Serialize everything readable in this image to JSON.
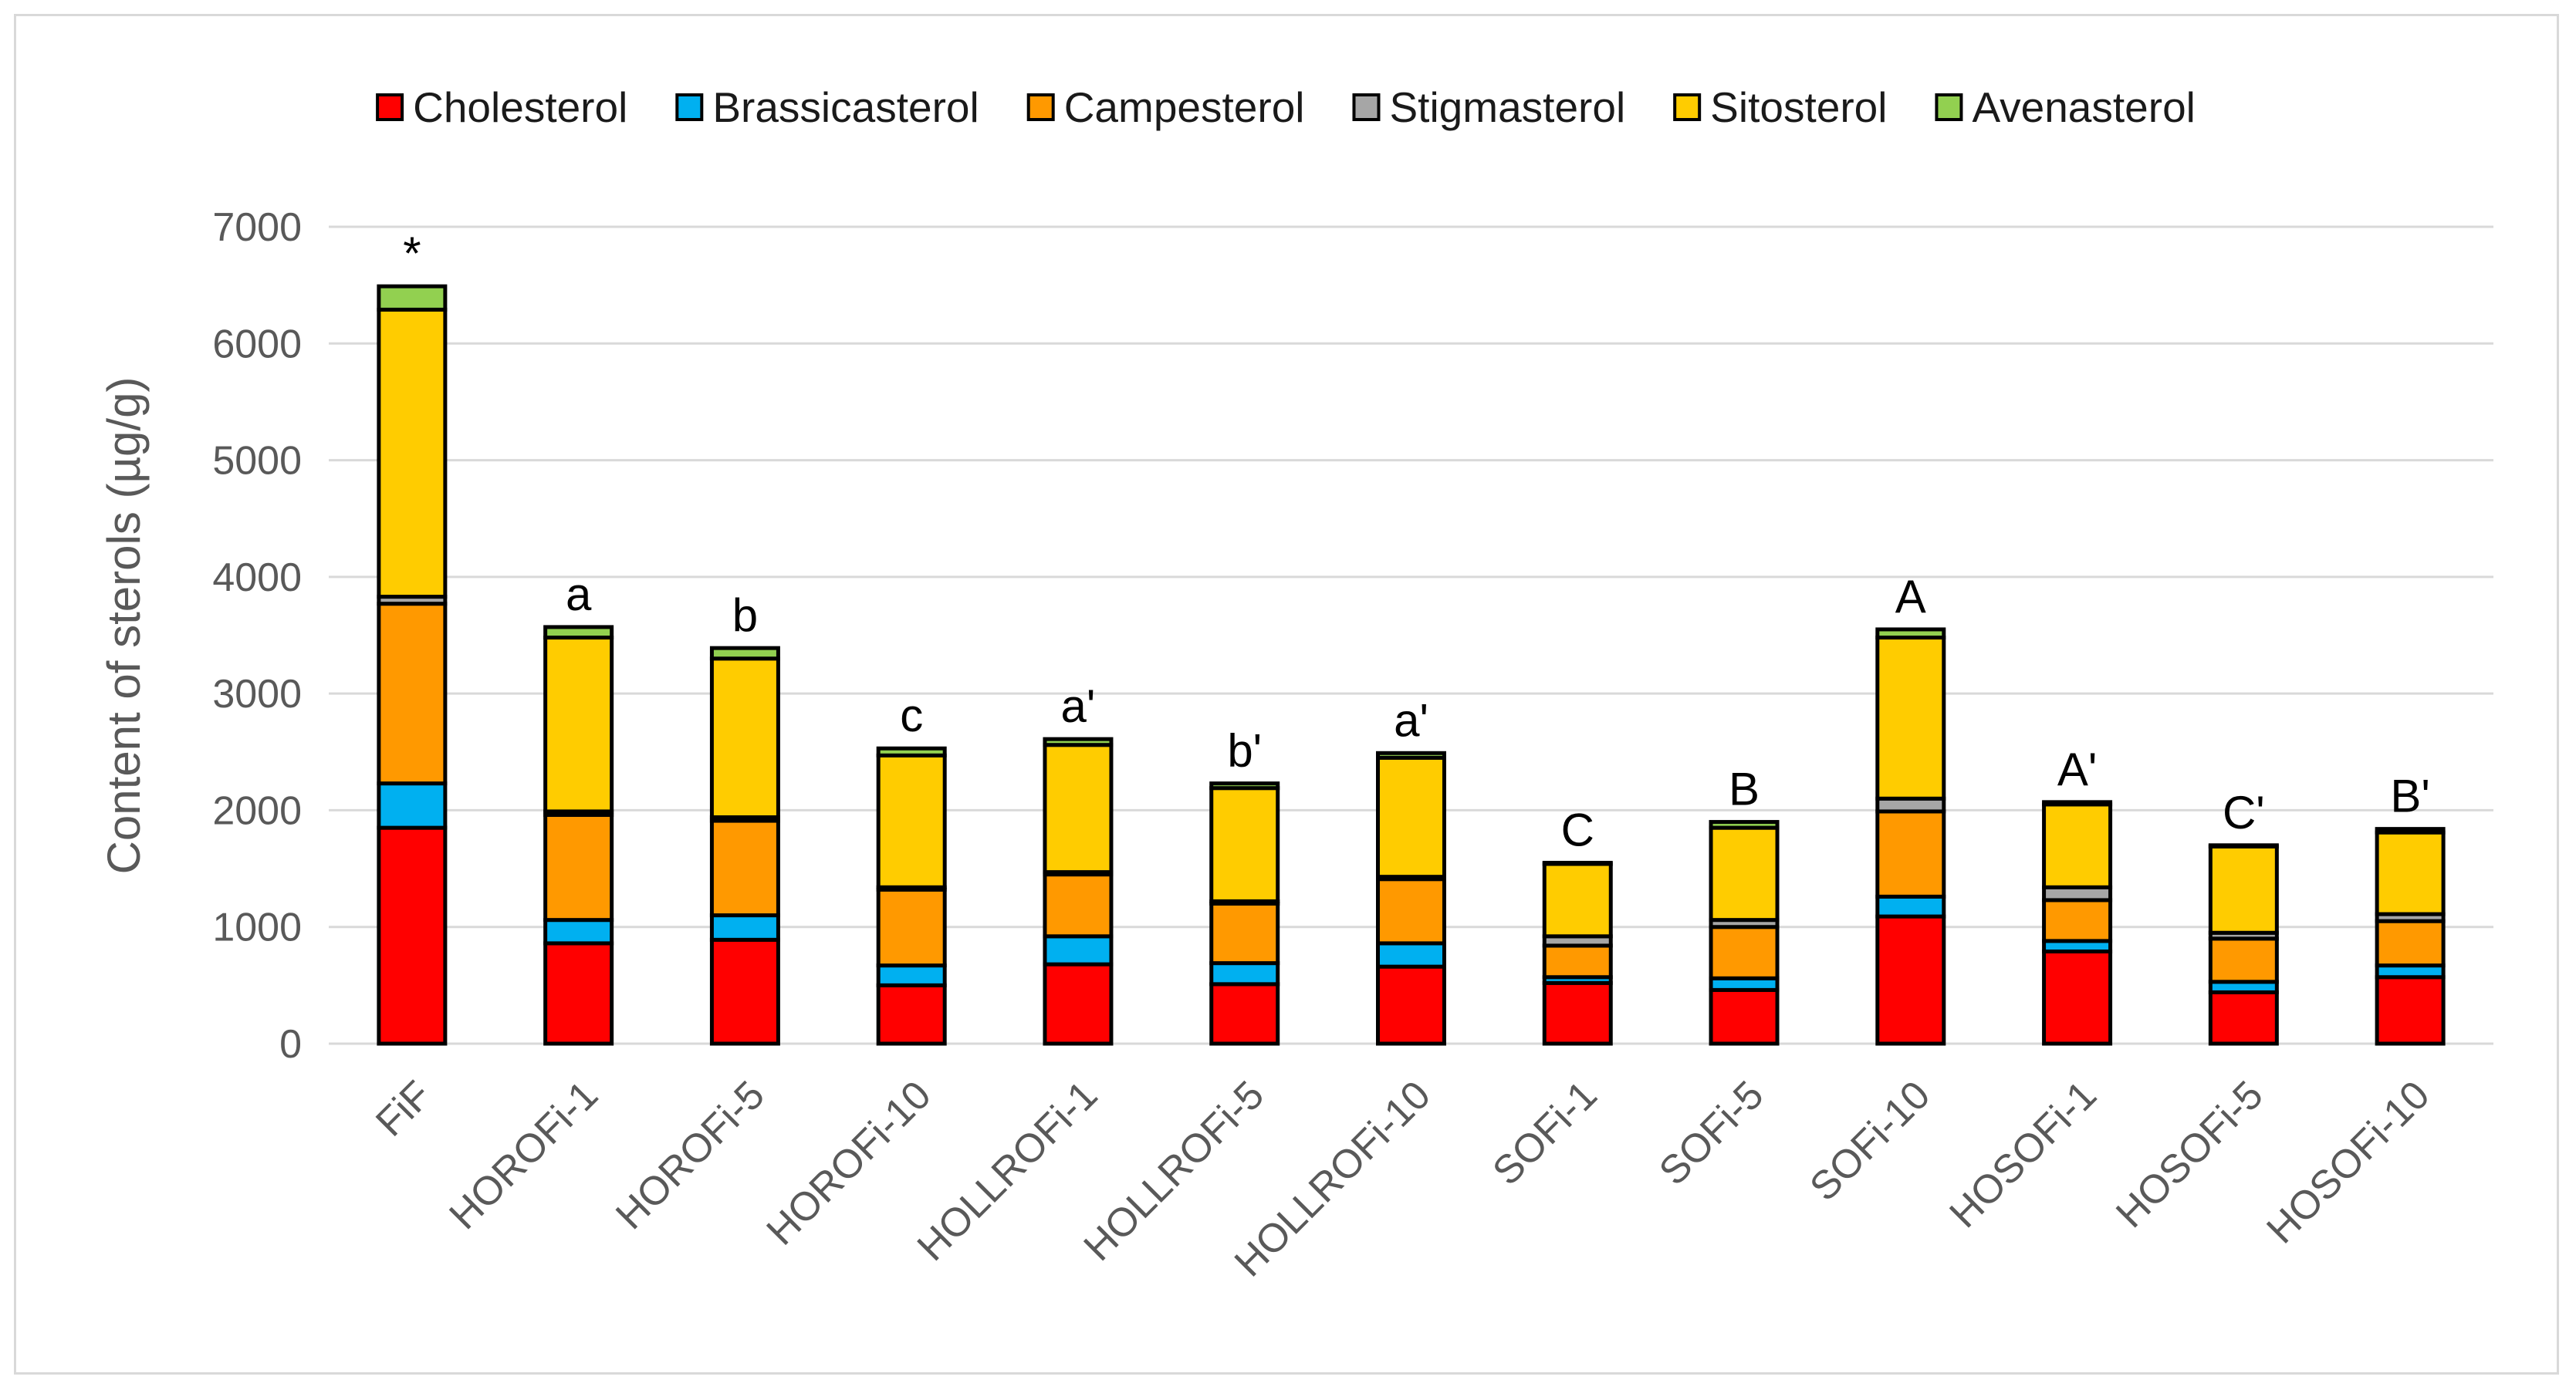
{
  "chart_data": {
    "type": "bar",
    "stacked": true,
    "title": "",
    "xlabel": "",
    "ylabel": "Content of sterols (µg/g)",
    "ylim": [
      0,
      7000
    ],
    "yticks": [
      0,
      1000,
      2000,
      3000,
      4000,
      5000,
      6000,
      7000
    ],
    "grid": true,
    "legend_position": "top",
    "categories": [
      "FiF",
      "HOROFi-1",
      "HOROFi-5",
      "HOROFi-10",
      "HOLLROFi-1",
      "HOLLROFi-5",
      "HOLLROFi-10",
      "SOFi-1",
      "SOFi-5",
      "SOFi-10",
      "HOSOFi-1",
      "HOSOFi-5",
      "HOSOFi-10"
    ],
    "series": [
      {
        "name": "Cholesterol",
        "color": "#ff0000",
        "values": [
          1850,
          860,
          890,
          500,
          680,
          510,
          660,
          520,
          460,
          1090,
          790,
          440,
          570
        ]
      },
      {
        "name": "Brassicasterol",
        "color": "#00b0f0",
        "values": [
          380,
          200,
          210,
          170,
          240,
          180,
          200,
          50,
          100,
          170,
          90,
          90,
          100
        ]
      },
      {
        "name": "Campesterol",
        "color": "#ff9900",
        "values": [
          1540,
          900,
          810,
          650,
          530,
          510,
          550,
          270,
          440,
          730,
          350,
          370,
          380
        ]
      },
      {
        "name": "Stigmasterol",
        "color": "#a6a6a6",
        "values": [
          60,
          30,
          30,
          20,
          20,
          20,
          20,
          80,
          60,
          110,
          110,
          50,
          60
        ]
      },
      {
        "name": "Sitosterol",
        "color": "#ffcc00",
        "values": [
          2460,
          1490,
          1360,
          1130,
          1090,
          970,
          1020,
          620,
          790,
          1380,
          710,
          740,
          700
        ]
      },
      {
        "name": "Avenasterol",
        "color": "#92d050",
        "values": [
          200,
          90,
          90,
          60,
          50,
          40,
          40,
          10,
          50,
          70,
          20,
          10,
          30
        ]
      }
    ],
    "annotations": [
      "*",
      "a",
      "b",
      "c",
      "a'",
      "b'",
      "a'",
      "C",
      "B",
      "A",
      "A'",
      "C'",
      "B'"
    ]
  }
}
